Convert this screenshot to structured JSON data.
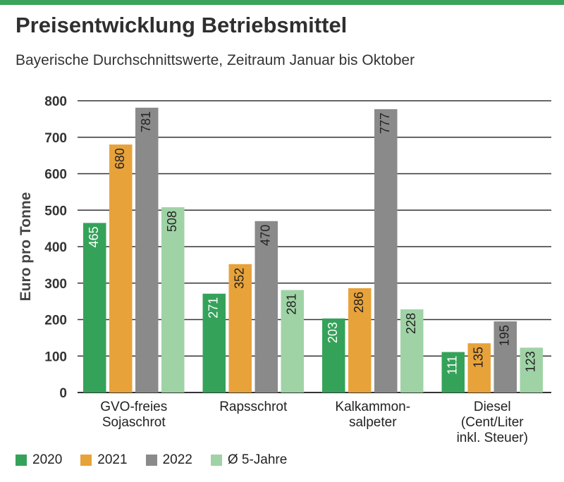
{
  "header": {
    "title": "Preisentwicklung Betriebsmittel",
    "subtitle": "Bayerische Durchschnittswerte, Zeitraum Januar bis Oktober"
  },
  "colors": {
    "accent": "#3aa35a",
    "grid": "#333333",
    "bar_label_dark": "#222222",
    "bar_label_light": "#ffffff"
  },
  "chart_data": {
    "type": "bar",
    "title": "Preisentwicklung Betriebsmittel",
    "subtitle": "Bayerische Durchschnittswerte, Zeitraum Januar bis Oktober",
    "xlabel": "",
    "ylabel": "Euro pro Tonne",
    "ylim": [
      0,
      800
    ],
    "yticks": [
      0,
      100,
      200,
      300,
      400,
      500,
      600,
      700,
      800
    ],
    "grid": true,
    "legend_position": "bottom-left",
    "categories": [
      [
        "GVO-freies",
        "Sojaschrot"
      ],
      [
        "Rapsschrot"
      ],
      [
        "Kalkammon-",
        "salpeter"
      ],
      [
        "Diesel",
        "(Cent/Liter",
        "inkl. Steuer)"
      ]
    ],
    "series": [
      {
        "name": "2020",
        "color": "#35a25a",
        "values": [
          465,
          271,
          203,
          111
        ]
      },
      {
        "name": "2021",
        "color": "#e8a23a",
        "values": [
          680,
          352,
          286,
          135
        ]
      },
      {
        "name": "2022",
        "color": "#8a8a8a",
        "values": [
          781,
          470,
          777,
          195
        ]
      },
      {
        "name": "Ø 5-Jahre",
        "color": "#9fd3a6",
        "values": [
          508,
          281,
          228,
          123
        ]
      }
    ]
  }
}
